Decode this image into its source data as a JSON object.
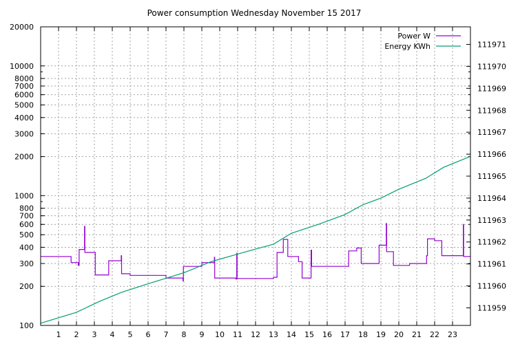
{
  "chart_data": {
    "type": "line",
    "title": "Power consumption Wednesday November 15 2017",
    "xlabel": "",
    "ylabel": "",
    "y2label": "",
    "xlim": [
      0,
      24
    ],
    "ylim": [
      100,
      20000
    ],
    "y_scale": "log",
    "y2lim": [
      111958.2,
      111971.8
    ],
    "grid": true,
    "legend_position": "top-right",
    "x_ticks": [
      1,
      2,
      3,
      4,
      5,
      6,
      7,
      8,
      9,
      10,
      11,
      12,
      13,
      14,
      15,
      16,
      17,
      18,
      19,
      20,
      21,
      22,
      23
    ],
    "y_ticks": [
      100,
      200,
      300,
      400,
      500,
      600,
      700,
      800,
      1000,
      2000,
      3000,
      4000,
      5000,
      6000,
      7000,
      8000,
      10000,
      20000
    ],
    "y2_ticks": [
      111959,
      111960,
      111961,
      111962,
      111963,
      111964,
      111965,
      111966,
      111967,
      111968,
      111969,
      111970,
      111971
    ],
    "series": [
      {
        "name": "Power W",
        "axis": "left",
        "color": "#9400d3",
        "step": true,
        "points": [
          [
            0,
            340
          ],
          [
            1.7,
            340
          ],
          [
            1.7,
            305
          ],
          [
            2.1,
            305
          ],
          [
            2.1,
            290
          ],
          [
            2.15,
            290
          ],
          [
            2.15,
            385
          ],
          [
            2.45,
            385
          ],
          [
            2.45,
            580
          ],
          [
            2.47,
            580
          ],
          [
            2.47,
            365
          ],
          [
            3.05,
            365
          ],
          [
            3.05,
            245
          ],
          [
            3.8,
            245
          ],
          [
            3.8,
            315
          ],
          [
            4.5,
            315
          ],
          [
            4.5,
            345
          ],
          [
            4.52,
            345
          ],
          [
            4.52,
            250
          ],
          [
            5.0,
            250
          ],
          [
            5.0,
            243
          ],
          [
            7.0,
            243
          ],
          [
            7.0,
            232
          ],
          [
            7.95,
            232
          ],
          [
            7.95,
            220
          ],
          [
            7.97,
            220
          ],
          [
            7.97,
            285
          ],
          [
            9.0,
            285
          ],
          [
            9.0,
            305
          ],
          [
            9.7,
            305
          ],
          [
            9.7,
            335
          ],
          [
            9.72,
            335
          ],
          [
            9.72,
            232
          ],
          [
            10.9,
            232
          ],
          [
            10.9,
            228
          ],
          [
            10.95,
            228
          ],
          [
            10.95,
            360
          ],
          [
            10.97,
            360
          ],
          [
            10.97,
            230
          ],
          [
            13.0,
            230
          ],
          [
            13.0,
            235
          ],
          [
            13.2,
            235
          ],
          [
            13.2,
            365
          ],
          [
            13.55,
            365
          ],
          [
            13.55,
            460
          ],
          [
            13.8,
            460
          ],
          [
            13.8,
            340
          ],
          [
            14.4,
            340
          ],
          [
            14.4,
            310
          ],
          [
            14.6,
            310
          ],
          [
            14.6,
            232
          ],
          [
            15.1,
            232
          ],
          [
            15.1,
            380
          ],
          [
            15.13,
            380
          ],
          [
            15.13,
            285
          ],
          [
            17.2,
            285
          ],
          [
            17.2,
            375
          ],
          [
            17.65,
            375
          ],
          [
            17.65,
            395
          ],
          [
            17.9,
            395
          ],
          [
            17.9,
            300
          ],
          [
            18.9,
            300
          ],
          [
            18.9,
            415
          ],
          [
            19.3,
            415
          ],
          [
            19.3,
            610
          ],
          [
            19.32,
            610
          ],
          [
            19.32,
            370
          ],
          [
            19.7,
            370
          ],
          [
            19.7,
            290
          ],
          [
            20.6,
            290
          ],
          [
            20.6,
            300
          ],
          [
            21.55,
            300
          ],
          [
            21.55,
            345
          ],
          [
            21.6,
            345
          ],
          [
            21.6,
            465
          ],
          [
            22.0,
            465
          ],
          [
            22.0,
            450
          ],
          [
            22.4,
            450
          ],
          [
            22.4,
            345
          ],
          [
            23.6,
            345
          ],
          [
            23.6,
            600
          ],
          [
            23.62,
            600
          ],
          [
            23.62,
            340
          ],
          [
            24,
            340
          ]
        ]
      },
      {
        "name": "Energy KWh",
        "axis": "right",
        "color": "#009e73",
        "step": false,
        "points": [
          [
            0,
            111958.3
          ],
          [
            2,
            111958.8
          ],
          [
            3.3,
            111959.3
          ],
          [
            4.5,
            111959.7
          ],
          [
            6.0,
            111960.1
          ],
          [
            8.0,
            111960.6
          ],
          [
            9.5,
            111961.1
          ],
          [
            11.0,
            111961.45
          ],
          [
            13.0,
            111961.9
          ],
          [
            14.0,
            111962.4
          ],
          [
            15.5,
            111962.8
          ],
          [
            17.0,
            111963.25
          ],
          [
            18.0,
            111963.7
          ],
          [
            19.0,
            111964.0
          ],
          [
            20.0,
            111964.4
          ],
          [
            21.5,
            111964.9
          ],
          [
            22.5,
            111965.4
          ],
          [
            24,
            111965.9
          ]
        ]
      }
    ]
  }
}
